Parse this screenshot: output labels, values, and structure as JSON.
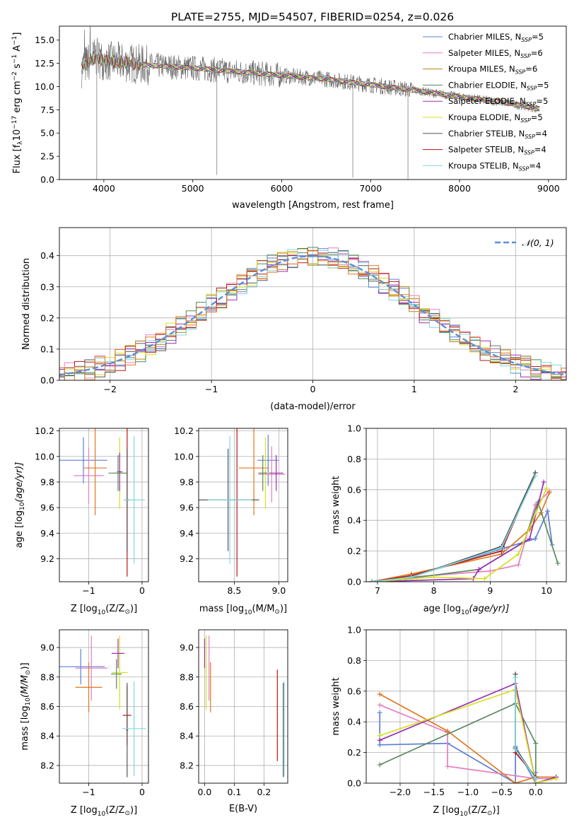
{
  "figure": {
    "title": "PLATE=2755, MJD=54507, FIBERID=0254, z=0.026"
  },
  "colors": {
    "Chabrier MILES": "#5b7fd6",
    "Salpeter MILES": "#e37fc0",
    "Kroupa MILES": "#b8860b",
    "Chabrier ELODIE": "#4f8a5a",
    "Salpeter ELODIE": "#9b2fb3",
    "Kroupa ELODIE": "#d6e020",
    "Chabrier STELIB": "#555555",
    "Salpeter STELIB": "#b31818",
    "Kroupa STELIB": "#7fd8e0",
    "extra_orange": "#e07820",
    "extra_green": "#5a8a60",
    "grid": "#b0b0b0",
    "gaussian": "#5b8fd6"
  },
  "chart_data": [
    {
      "id": "spectrum",
      "type": "line",
      "xlabel": "wavelength [Angstrom, rest frame]",
      "ylabel": "Flux [f",
      "ylabel_sub": "λ",
      "ylabel_rest": "10",
      "ylabel_exp1": "−17",
      "ylabel_mid": " erg cm",
      "ylabel_exp2": "−2",
      "ylabel_s": " s",
      "ylabel_exp3": "−1",
      "ylabel_A": " A",
      "ylabel_exp4": "−1",
      "ylabel_end": "]",
      "xlim": [
        3500,
        9200
      ],
      "ylim": [
        0,
        16.5
      ],
      "xticks": [
        "4000",
        "5000",
        "6000",
        "7000",
        "8000",
        "9000"
      ],
      "yticks": [
        "0.0",
        "2.5",
        "5.0",
        "7.5",
        "10.0",
        "12.5",
        "15.0"
      ],
      "legend": [
        {
          "name": "Chabrier MILES",
          "nssp": "=5"
        },
        {
          "name": "Salpeter MILES",
          "nssp": "=6"
        },
        {
          "name": "Kroupa MILES",
          "nssp": "=6"
        },
        {
          "name": "Chabrier ELODIE",
          "nssp": "=5"
        },
        {
          "name": "Salpeter ELODIE",
          "nssp": "=5"
        },
        {
          "name": "Kroupa ELODIE",
          "nssp": "=5"
        },
        {
          "name": "Chabrier STELIB",
          "nssp": "=4"
        },
        {
          "name": "Salpeter STELIB",
          "nssp": "=4"
        },
        {
          "name": "Kroupa STELIB",
          "nssp": "=4"
        }
      ],
      "nssp_label": "N",
      "nssp_sub": "SSP",
      "data_envelope": {
        "x": [
          3750,
          3900,
          4000,
          4200,
          4500,
          5000,
          5500,
          6000,
          6500,
          7000,
          7500,
          8000,
          8500,
          8900
        ],
        "y": [
          12.0,
          13.2,
          12.8,
          12.6,
          12.3,
          12.0,
          11.6,
          11.2,
          10.8,
          10.2,
          9.6,
          8.9,
          8.3,
          7.6
        ]
      },
      "dips": [
        {
          "x": 3920,
          "y": 0.0
        },
        {
          "x": 5270,
          "y": 0.5
        },
        {
          "x": 6800,
          "y": 0.2
        },
        {
          "x": 7420,
          "y": 0.0
        }
      ]
    },
    {
      "id": "residuals",
      "type": "bar",
      "xlabel": "(data-model)/error",
      "ylabel": "Normed distribution",
      "xlim": [
        -2.5,
        2.5
      ],
      "ylim": [
        0,
        0.49
      ],
      "xticks": [
        "−2",
        "−1",
        "0",
        "1",
        "2"
      ],
      "yticks": [
        "0.0",
        "0.1",
        "0.2",
        "0.3",
        "0.4"
      ],
      "legend_label": "𝒩(0, 1)",
      "bin_width": 0.1,
      "gaussian": {
        "mu": 0,
        "sigma": 1
      }
    },
    {
      "id": "age-vs-Z",
      "type": "scatter",
      "xlabel": "Z [log",
      "xlabel_sub": "10",
      "xlabel_end": "(Z/Z",
      "xlabel_sun": "⊙",
      "xlabel_close": ")]",
      "ylabel": "age  [log",
      "ylabel_sub": "10",
      "ylabel_end": "(age/yr)]",
      "xlim": [
        -1.55,
        0.12
      ],
      "ylim": [
        9.02,
        10.22
      ],
      "xticks": [
        "−1",
        "0"
      ],
      "yticks": [
        "9.2",
        "9.4",
        "9.6",
        "9.8",
        "10.0",
        "10.2"
      ],
      "points": [
        {
          "color": "Chabrier MILES",
          "x": -1.1,
          "xerr": 0.45,
          "y": 9.97,
          "yerr": 0.18
        },
        {
          "color": "Salpeter MILES",
          "x": -1.0,
          "xerr": 0.28,
          "y": 9.85,
          "yerr": 0.22
        },
        {
          "color": "extra_orange",
          "x": -0.88,
          "xerr": 0.22,
          "y": 9.91,
          "yerr": 0.37
        },
        {
          "color": "Kroupa ELODIE",
          "x": -0.42,
          "xerr": 0.12,
          "y": 9.87,
          "yerr": 0.28
        },
        {
          "color": "Salpeter ELODIE",
          "x": -0.42,
          "xerr": 0.05,
          "y": 9.88,
          "yerr": 0.15
        },
        {
          "color": "extra_green",
          "x": -0.45,
          "xerr": 0.18,
          "y": 9.87,
          "yerr": 0.14
        },
        {
          "color": "Salpeter STELIB",
          "x": -0.28,
          "xerr": 0.05,
          "y": 9.66,
          "yerr": 0.6
        },
        {
          "color": "Chabrier STELIB",
          "x": -0.28,
          "xerr": 0.02,
          "y": 9.66,
          "yerr": 0.4
        },
        {
          "color": "Kroupa STELIB",
          "x": -0.15,
          "xerr": 0.2,
          "y": 9.66,
          "yerr": 0.5
        }
      ]
    },
    {
      "id": "age-vs-mass",
      "type": "scatter",
      "xlabel": "mass [log",
      "xlabel_sub": "10",
      "xlabel_end": "(M/M",
      "xlabel_sun": "⊙",
      "xlabel_close": ")]",
      "xlim": [
        8.1,
        9.1
      ],
      "ylim": [
        9.02,
        10.22
      ],
      "xticks": [
        "8.5",
        "9.0"
      ],
      "yticks": [
        "9.2",
        "9.4",
        "9.6",
        "9.8",
        "10.0",
        "10.2"
      ],
      "points": [
        {
          "color": "Chabrier MILES",
          "x": 8.88,
          "xerr": 0.12,
          "y": 9.97,
          "yerr": 0.2
        },
        {
          "color": "Salpeter MILES",
          "x": 8.92,
          "xerr": 0.15,
          "y": 9.86,
          "yerr": 0.22
        },
        {
          "color": "extra_orange",
          "x": 8.72,
          "xerr": 0.17,
          "y": 9.91,
          "yerr": 0.37
        },
        {
          "color": "Kroupa ELODIE",
          "x": 8.85,
          "xerr": 0.05,
          "y": 9.87,
          "yerr": 0.28
        },
        {
          "color": "Salpeter ELODIE",
          "x": 8.97,
          "xerr": 0.08,
          "y": 9.87,
          "yerr": 0.14
        },
        {
          "color": "extra_green",
          "x": 8.82,
          "xerr": 0.05,
          "y": 9.87,
          "yerr": 0.14
        },
        {
          "color": "Salpeter STELIB",
          "x": 8.53,
          "xerr": 0.03,
          "y": 9.66,
          "yerr": 0.6
        },
        {
          "color": "Chabrier STELIB",
          "x": 8.43,
          "xerr": 0.35,
          "y": 9.66,
          "yerr": 0.4
        },
        {
          "color": "Kroupa STELIB",
          "x": 8.45,
          "xerr": 0.25,
          "y": 9.66,
          "yerr": 0.5
        }
      ]
    },
    {
      "id": "weight-vs-age",
      "type": "line",
      "xlabel": "age  [log",
      "xlabel_sub": "10",
      "xlabel_end": "(age/yr)]",
      "ylabel": "mass weight",
      "xlim": [
        6.8,
        10.35
      ],
      "ylim": [
        0,
        1.0
      ],
      "xticks": [
        "7",
        "8",
        "9",
        "10"
      ],
      "yticks": [
        "0.0",
        "0.2",
        "0.4",
        "0.6",
        "0.8",
        "1.0"
      ],
      "series": [
        {
          "color": "Chabrier MILES",
          "x": [
            6.9,
            7.5,
            9.25,
            9.8,
            10.02,
            10.1
          ],
          "y": [
            0.0,
            0.02,
            0.22,
            0.28,
            0.46,
            0.24
          ]
        },
        {
          "color": "Salpeter MILES",
          "x": [
            6.9,
            7.6,
            9.0,
            9.5,
            9.8,
            10.05
          ],
          "y": [
            0.0,
            0.03,
            0.07,
            0.11,
            0.5,
            0.59
          ]
        },
        {
          "color": "extra_orange",
          "x": [
            6.9,
            7.6,
            9.2,
            9.7,
            9.9,
            10.05
          ],
          "y": [
            0.0,
            0.05,
            0.18,
            0.34,
            0.45,
            0.58
          ]
        },
        {
          "color": "extra_green",
          "x": [
            6.9,
            7.5,
            8.8,
            9.6,
            9.85,
            10.2
          ],
          "y": [
            0.0,
            0.02,
            0.08,
            0.26,
            0.52,
            0.12
          ]
        },
        {
          "color": "Salpeter ELODIE",
          "x": [
            6.9,
            8.7,
            8.8,
            9.7,
            9.95
          ],
          "y": [
            0.0,
            0.02,
            0.08,
            0.28,
            0.65
          ]
        },
        {
          "color": "Kroupa ELODIE",
          "x": [
            6.9,
            8.0,
            8.9,
            9.5,
            10.0
          ],
          "y": [
            0.0,
            0.03,
            0.02,
            0.18,
            0.61
          ]
        },
        {
          "color": "Salpeter STELIB",
          "x": [
            6.9,
            7.6,
            9.2,
            9.8
          ],
          "y": [
            0.0,
            0.04,
            0.2,
            0.71
          ]
        },
        {
          "color": "Chabrier STELIB",
          "x": [
            6.9,
            7.6,
            9.2,
            9.8
          ],
          "y": [
            0.0,
            0.03,
            0.23,
            0.71
          ]
        },
        {
          "color": "Kroupa STELIB",
          "x": [
            6.9,
            7.6,
            9.2,
            9.8
          ],
          "y": [
            0.0,
            0.03,
            0.22,
            0.69
          ]
        }
      ]
    },
    {
      "id": "mass-vs-Z",
      "type": "scatter",
      "xlabel": "Z [log",
      "xlabel_sub": "10",
      "xlabel_end": "(Z/Z",
      "xlabel_sun": "⊙",
      "xlabel_close": ")]",
      "ylabel": "mass [log",
      "ylabel_sub": "10",
      "ylabel_end": "(M/M",
      "ylabel_sun": "⊙",
      "ylabel_close": ")]",
      "xlim": [
        -1.55,
        0.12
      ],
      "ylim": [
        8.08,
        9.12
      ],
      "xticks": [
        "−1",
        "0"
      ],
      "yticks": [
        "8.2",
        "8.4",
        "8.6",
        "8.8",
        "9.0"
      ],
      "points": [
        {
          "color": "Chabrier MILES",
          "x": -1.15,
          "xerr": 0.45,
          "y": 8.87,
          "yerr": 0.12
        },
        {
          "color": "Salpeter MILES",
          "x": -0.95,
          "xerr": 0.3,
          "y": 8.86,
          "yerr": 0.22
        },
        {
          "color": "extra_orange",
          "x": -1.0,
          "xerr": 0.25,
          "y": 8.73,
          "yerr": 0.17
        },
        {
          "color": "Kroupa ELODIE",
          "x": -0.42,
          "xerr": 0.15,
          "y": 8.83,
          "yerr": 0.25
        },
        {
          "color": "Salpeter ELODIE",
          "x": -0.45,
          "xerr": 0.12,
          "y": 8.96,
          "yerr": 0.1
        },
        {
          "color": "extra_green",
          "x": -0.48,
          "xerr": 0.1,
          "y": 8.82,
          "yerr": 0.1
        },
        {
          "color": "Salpeter STELIB",
          "x": -0.28,
          "xerr": 0.08,
          "y": 8.54,
          "yerr": 0.2
        },
        {
          "color": "Chabrier STELIB",
          "x": -0.28,
          "xerr": 0.02,
          "y": 8.44,
          "yerr": 0.32
        },
        {
          "color": "Kroupa STELIB",
          "x": -0.15,
          "xerr": 0.22,
          "y": 8.45,
          "yerr": 0.32
        }
      ]
    },
    {
      "id": "mass-vs-EBV",
      "type": "scatter",
      "xlabel": "E(B-V)",
      "xlim": [
        -0.02,
        0.28
      ],
      "ylim": [
        8.08,
        9.12
      ],
      "xticks": [
        "0.0",
        "0.1",
        "0.2"
      ],
      "yticks": [
        "8.2",
        "8.4",
        "8.6",
        "8.8",
        "9.0"
      ],
      "points": [
        {
          "color": "Salpeter ELODIE",
          "x": 0.0,
          "xerr": 0.0,
          "y": 8.96,
          "yerr": 0.1
        },
        {
          "color": "Kroupa ELODIE",
          "x": 0.005,
          "xerr": 0.0,
          "y": 8.83,
          "yerr": 0.25
        },
        {
          "color": "Salpeter MILES",
          "x": 0.015,
          "xerr": 0.0,
          "y": 8.86,
          "yerr": 0.22
        },
        {
          "color": "extra_orange",
          "x": 0.02,
          "xerr": 0.0,
          "y": 8.73,
          "yerr": 0.17
        },
        {
          "color": "Salpeter STELIB",
          "x": 0.245,
          "xerr": 0.0,
          "y": 8.54,
          "yerr": 0.31
        },
        {
          "color": "Chabrier STELIB",
          "x": 0.265,
          "xerr": 0.0,
          "y": 8.44,
          "yerr": 0.32
        },
        {
          "color": "Kroupa STELIB",
          "x": 0.268,
          "xerr": 0.0,
          "y": 8.45,
          "yerr": 0.32
        }
      ]
    },
    {
      "id": "weight-vs-Z",
      "type": "line",
      "xlabel": "Z [log",
      "xlabel_sub": "10",
      "xlabel_end": "(Z/Z",
      "xlabel_sun": "⊙",
      "xlabel_close": ")]",
      "ylabel": "mass weight",
      "xlim": [
        -2.5,
        0.45
      ],
      "ylim": [
        0,
        1.0
      ],
      "xticks": [
        "−2.0",
        "−1.5",
        "−1.0",
        "−0.5",
        "0.0"
      ],
      "yticks": [
        "0.0",
        "0.2",
        "0.4",
        "0.6",
        "0.8",
        "1.0"
      ],
      "series": [
        {
          "color": "Chabrier MILES",
          "x": [
            -2.3,
            -2.3,
            -1.3,
            -0.3,
            -0.3,
            0.0,
            0.0
          ],
          "y": [
            0.46,
            0.25,
            0.26,
            0.0,
            0.24,
            0.0,
            0.07
          ]
        },
        {
          "color": "Salpeter MILES",
          "x": [
            -2.3,
            -1.3,
            -1.3,
            0.0,
            0.3
          ],
          "y": [
            0.51,
            0.33,
            0.11,
            0.03,
            0.03
          ]
        },
        {
          "color": "extra_orange",
          "x": [
            -2.3,
            -1.3,
            -0.3,
            0.0,
            0.3
          ],
          "y": [
            0.58,
            0.34,
            0.0,
            0.04,
            0.04
          ]
        },
        {
          "color": "extra_green",
          "x": [
            -2.3,
            -0.3,
            0.0,
            0.0
          ],
          "y": [
            0.12,
            0.52,
            0.26,
            0.0
          ]
        },
        {
          "color": "Salpeter ELODIE",
          "x": [
            -2.3,
            -0.3,
            0.0,
            0.3
          ],
          "y": [
            0.28,
            0.65,
            0.0,
            0.04
          ]
        },
        {
          "color": "Kroupa ELODIE",
          "x": [
            -2.3,
            -0.3,
            0.0,
            0.3
          ],
          "y": [
            0.31,
            0.61,
            0.0,
            0.03
          ]
        },
        {
          "color": "Salpeter STELIB",
          "x": [
            -0.3,
            -0.3,
            0.0
          ],
          "y": [
            0.71,
            0.2,
            0.04
          ]
        },
        {
          "color": "Chabrier STELIB",
          "x": [
            -0.3,
            -0.3,
            0.0
          ],
          "y": [
            0.71,
            0.23,
            0.03
          ]
        },
        {
          "color": "Kroupa STELIB",
          "x": [
            -0.3,
            -0.3,
            0.0
          ],
          "y": [
            0.69,
            0.22,
            0.03
          ]
        }
      ]
    }
  ]
}
